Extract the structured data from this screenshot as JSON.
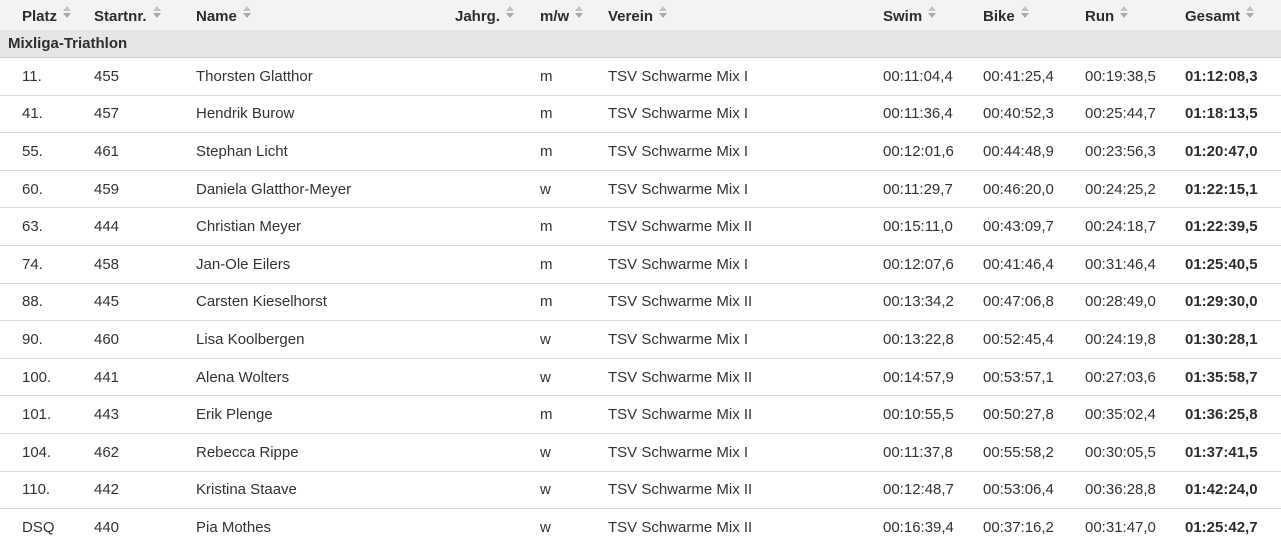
{
  "table": {
    "group_label": "Mixliga-Triathlon",
    "columns": [
      {
        "key": "platz",
        "label": "Platz",
        "sortable": true
      },
      {
        "key": "startnr",
        "label": "Startnr.",
        "sortable": true
      },
      {
        "key": "name",
        "label": "Name",
        "sortable": true
      },
      {
        "key": "jahrg",
        "label": "Jahrg.",
        "sortable": true
      },
      {
        "key": "mw",
        "label": "m/w",
        "sortable": true
      },
      {
        "key": "verein",
        "label": "Verein",
        "sortable": true
      },
      {
        "key": "swim",
        "label": "Swim",
        "sortable": true
      },
      {
        "key": "bike",
        "label": "Bike",
        "sortable": true
      },
      {
        "key": "run",
        "label": "Run",
        "sortable": true
      },
      {
        "key": "gesamt",
        "label": "Gesamt",
        "sortable": true
      }
    ],
    "rows": [
      {
        "platz": "11.",
        "startnr": "455",
        "name": "Thorsten Glatthor",
        "jahrg": "",
        "mw": "m",
        "verein": "TSV Schwarme Mix I",
        "swim": "00:11:04,4",
        "bike": "00:41:25,4",
        "run": "00:19:38,5",
        "gesamt": "01:12:08,3"
      },
      {
        "platz": "41.",
        "startnr": "457",
        "name": "Hendrik Burow",
        "jahrg": "",
        "mw": "m",
        "verein": "TSV Schwarme Mix I",
        "swim": "00:11:36,4",
        "bike": "00:40:52,3",
        "run": "00:25:44,7",
        "gesamt": "01:18:13,5"
      },
      {
        "platz": "55.",
        "startnr": "461",
        "name": "Stephan Licht",
        "jahrg": "",
        "mw": "m",
        "verein": "TSV Schwarme Mix I",
        "swim": "00:12:01,6",
        "bike": "00:44:48,9",
        "run": "00:23:56,3",
        "gesamt": "01:20:47,0"
      },
      {
        "platz": "60.",
        "startnr": "459",
        "name": "Daniela Glatthor-Meyer",
        "jahrg": "",
        "mw": "w",
        "verein": "TSV Schwarme Mix I",
        "swim": "00:11:29,7",
        "bike": "00:46:20,0",
        "run": "00:24:25,2",
        "gesamt": "01:22:15,1"
      },
      {
        "platz": "63.",
        "startnr": "444",
        "name": "Christian Meyer",
        "jahrg": "",
        "mw": "m",
        "verein": "TSV Schwarme Mix II",
        "swim": "00:15:11,0",
        "bike": "00:43:09,7",
        "run": "00:24:18,7",
        "gesamt": "01:22:39,5"
      },
      {
        "platz": "74.",
        "startnr": "458",
        "name": "Jan-Ole Eilers",
        "jahrg": "",
        "mw": "m",
        "verein": "TSV Schwarme Mix I",
        "swim": "00:12:07,6",
        "bike": "00:41:46,4",
        "run": "00:31:46,4",
        "gesamt": "01:25:40,5"
      },
      {
        "platz": "88.",
        "startnr": "445",
        "name": "Carsten Kieselhorst",
        "jahrg": "",
        "mw": "m",
        "verein": "TSV Schwarme Mix II",
        "swim": "00:13:34,2",
        "bike": "00:47:06,8",
        "run": "00:28:49,0",
        "gesamt": "01:29:30,0"
      },
      {
        "platz": "90.",
        "startnr": "460",
        "name": "Lisa Koolbergen",
        "jahrg": "",
        "mw": "w",
        "verein": "TSV Schwarme Mix I",
        "swim": "00:13:22,8",
        "bike": "00:52:45,4",
        "run": "00:24:19,8",
        "gesamt": "01:30:28,1"
      },
      {
        "platz": "100.",
        "startnr": "441",
        "name": "Alena Wolters",
        "jahrg": "",
        "mw": "w",
        "verein": "TSV Schwarme Mix II",
        "swim": "00:14:57,9",
        "bike": "00:53:57,1",
        "run": "00:27:03,6",
        "gesamt": "01:35:58,7"
      },
      {
        "platz": "101.",
        "startnr": "443",
        "name": "Erik Plenge",
        "jahrg": "",
        "mw": "m",
        "verein": "TSV Schwarme Mix II",
        "swim": "00:10:55,5",
        "bike": "00:50:27,8",
        "run": "00:35:02,4",
        "gesamt": "01:36:25,8"
      },
      {
        "platz": "104.",
        "startnr": "462",
        "name": "Rebecca Rippe",
        "jahrg": "",
        "mw": "w",
        "verein": "TSV Schwarme Mix I",
        "swim": "00:11:37,8",
        "bike": "00:55:58,2",
        "run": "00:30:05,5",
        "gesamt": "01:37:41,5"
      },
      {
        "platz": "110.",
        "startnr": "442",
        "name": "Kristina Staave",
        "jahrg": "",
        "mw": "w",
        "verein": "TSV Schwarme Mix II",
        "swim": "00:12:48,7",
        "bike": "00:53:06,4",
        "run": "00:36:28,8",
        "gesamt": "01:42:24,0"
      },
      {
        "platz": "DSQ",
        "startnr": "440",
        "name": "Pia Mothes",
        "jahrg": "",
        "mw": "w",
        "verein": "TSV Schwarme Mix II",
        "swim": "00:16:39,4",
        "bike": "00:37:16,2",
        "run": "00:31:47,0",
        "gesamt": "01:25:42,7"
      }
    ]
  },
  "colors": {
    "header_bg": "#f3f3f3",
    "group_row_bg": "#e6e6e6",
    "row_border": "#d9d9d9",
    "text": "#333333",
    "header_text": "#2d2d2d",
    "sort_icon_up": "#c4c4c4",
    "sort_icon_down": "#a9a9a9"
  }
}
